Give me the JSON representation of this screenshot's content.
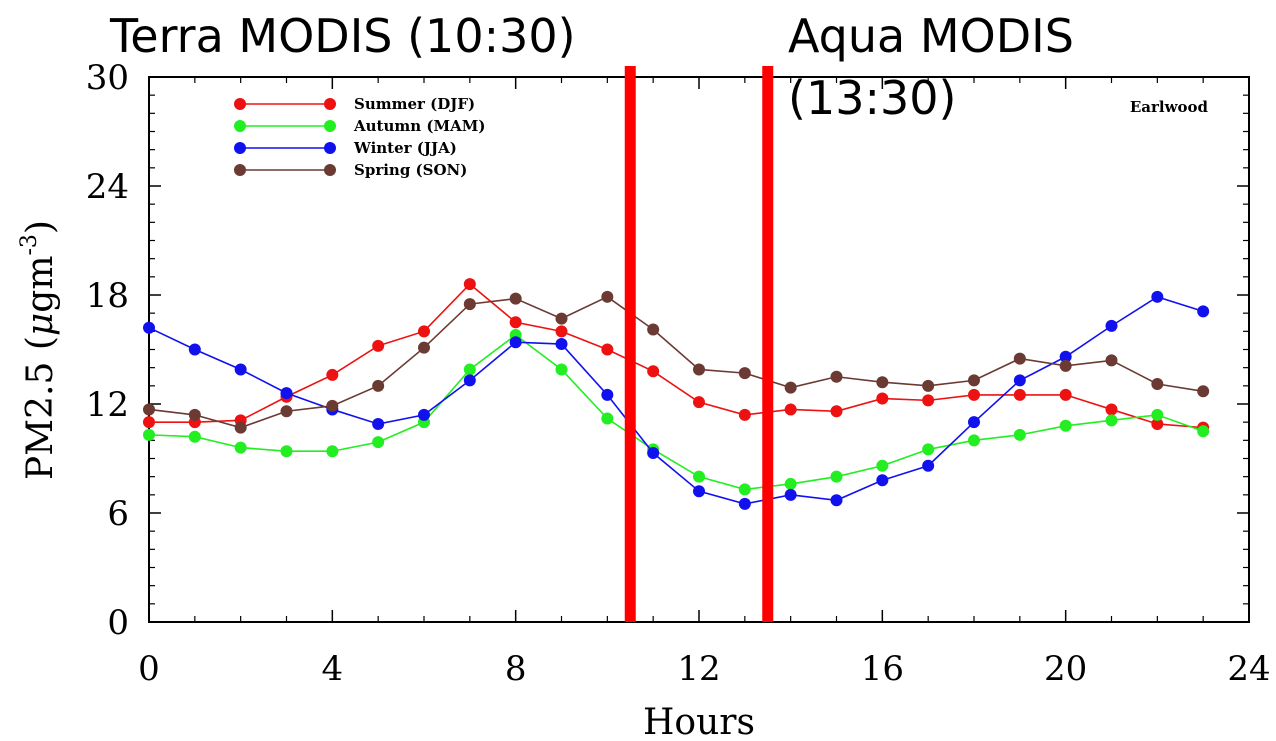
{
  "chart_data": {
    "type": "line",
    "title": "",
    "site_label": "Earlwood",
    "xlabel": "Hours",
    "ylabel_main": "PM2.5 (",
    "ylabel_mu": "μ",
    "ylabel_unit": "gm",
    "ylabel_exp": "-3",
    "ylabel_close": ")",
    "xlim": [
      0,
      24
    ],
    "ylim": [
      0,
      30
    ],
    "x_ticks": [
      0,
      4,
      8,
      12,
      16,
      20,
      24
    ],
    "y_ticks": [
      0,
      6,
      12,
      18,
      24,
      30
    ],
    "x": [
      0,
      1,
      2,
      3,
      4,
      5,
      6,
      7,
      8,
      9,
      10,
      11,
      12,
      13,
      14,
      15,
      16,
      17,
      18,
      19,
      20,
      21,
      22,
      23
    ],
    "legend_position": "top-left",
    "series": [
      {
        "name": "Summer (DJF)",
        "color": "#ee1111",
        "values": [
          11.0,
          11.0,
          11.1,
          12.4,
          13.6,
          15.2,
          16.0,
          18.6,
          16.5,
          16.0,
          15.0,
          13.8,
          12.1,
          11.4,
          11.7,
          11.6,
          12.3,
          12.2,
          12.5,
          12.5,
          12.5,
          11.7,
          10.9,
          10.7
        ]
      },
      {
        "name": "Autumn (MAM)",
        "color": "#22ee22",
        "values": [
          10.3,
          10.2,
          9.6,
          9.4,
          9.4,
          9.9,
          11.0,
          13.9,
          15.8,
          13.9,
          11.2,
          9.5,
          8.0,
          7.3,
          7.6,
          8.0,
          8.6,
          9.5,
          10.0,
          10.3,
          10.8,
          11.1,
          11.4,
          10.5
        ]
      },
      {
        "name": "Winter (JJA)",
        "color": "#1111ee",
        "values": [
          16.2,
          15.0,
          13.9,
          12.6,
          11.7,
          10.9,
          11.4,
          13.3,
          15.4,
          15.3,
          12.5,
          9.3,
          7.2,
          6.5,
          7.0,
          6.7,
          7.8,
          8.6,
          11.0,
          13.3,
          14.6,
          16.3,
          17.9,
          17.1
        ]
      },
      {
        "name": "Spring (SON)",
        "color": "#6b3a33",
        "values": [
          11.7,
          11.4,
          10.7,
          11.6,
          11.9,
          13.0,
          15.1,
          17.5,
          17.8,
          16.7,
          17.9,
          16.1,
          13.9,
          13.7,
          12.9,
          13.5,
          13.2,
          13.0,
          13.3,
          14.5,
          14.1,
          14.4,
          13.1,
          12.7
        ]
      }
    ],
    "annotations": [
      {
        "text": "Terra MODIS (10:30)",
        "x": 10.5
      },
      {
        "text_line1": "Aqua MODIS",
        "text_line2": "(13:30)",
        "x": 13.5
      }
    ],
    "vline_color": "#ff0000"
  }
}
